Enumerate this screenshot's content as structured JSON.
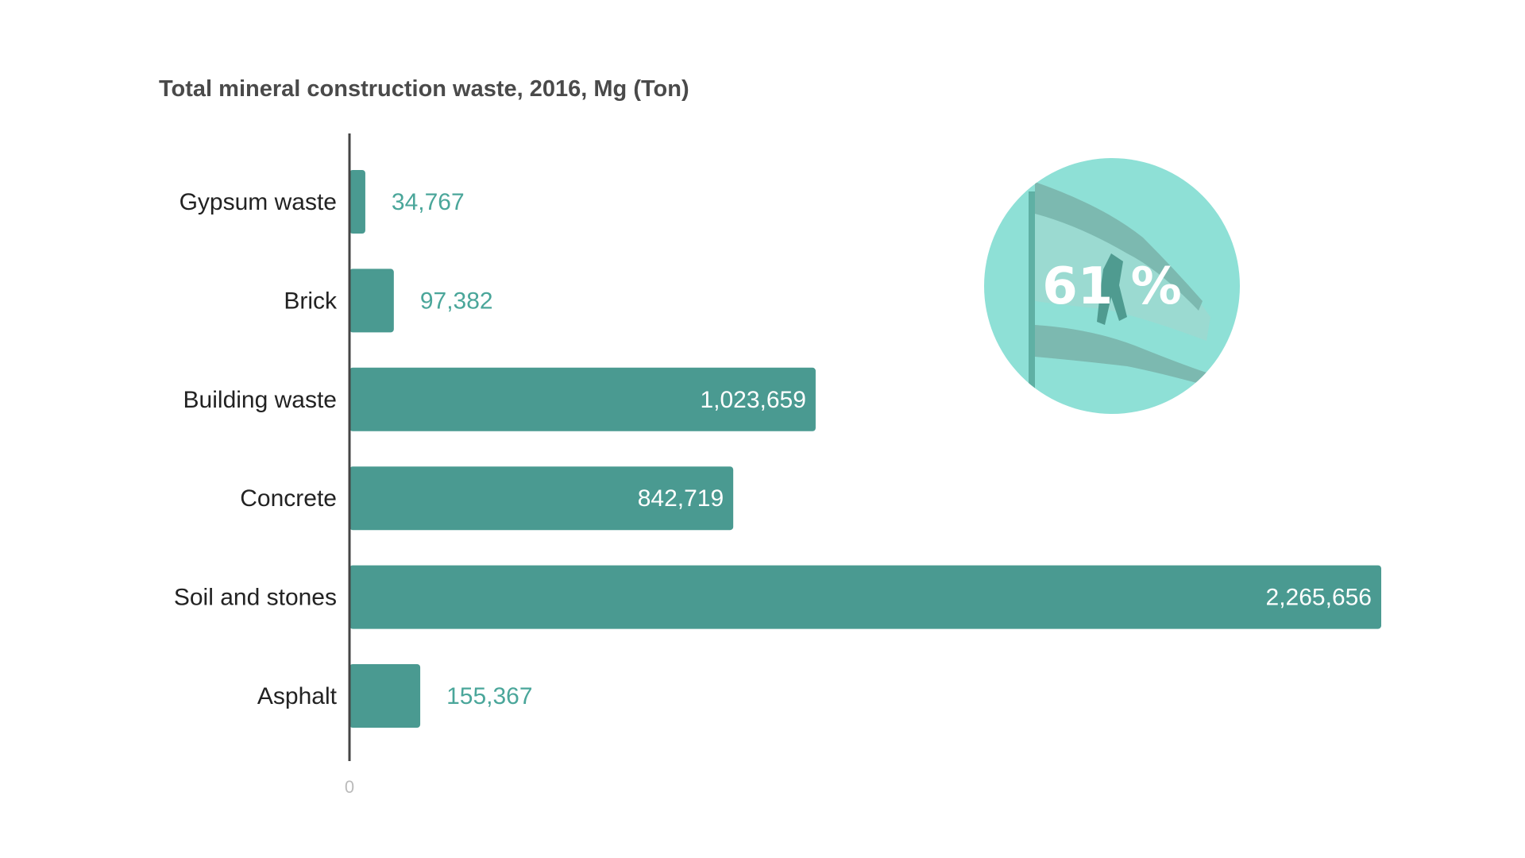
{
  "chart_data": {
    "type": "bar",
    "orientation": "horizontal",
    "title": "Total mineral construction waste, 2016, Mg (Ton)",
    "categories": [
      "Gypsum waste",
      "Brick",
      "Building waste",
      "Concrete",
      "Soil and stones",
      "Asphalt"
    ],
    "values": [
      34767,
      97382,
      1023659,
      842719,
      2265656,
      155367
    ],
    "value_labels": [
      "34,767",
      "97,382",
      "1,023,659",
      "842,719",
      "2,265,656",
      "155,367"
    ],
    "x_tick_labels": [
      "0"
    ],
    "xlim": [
      0,
      2265656
    ],
    "grid": false,
    "bar_color": "#4a9a91",
    "label_color": "#4aa69a"
  },
  "badge": {
    "text": "61 %",
    "image": "flag-with-bear",
    "color": "#8ee0d6"
  }
}
